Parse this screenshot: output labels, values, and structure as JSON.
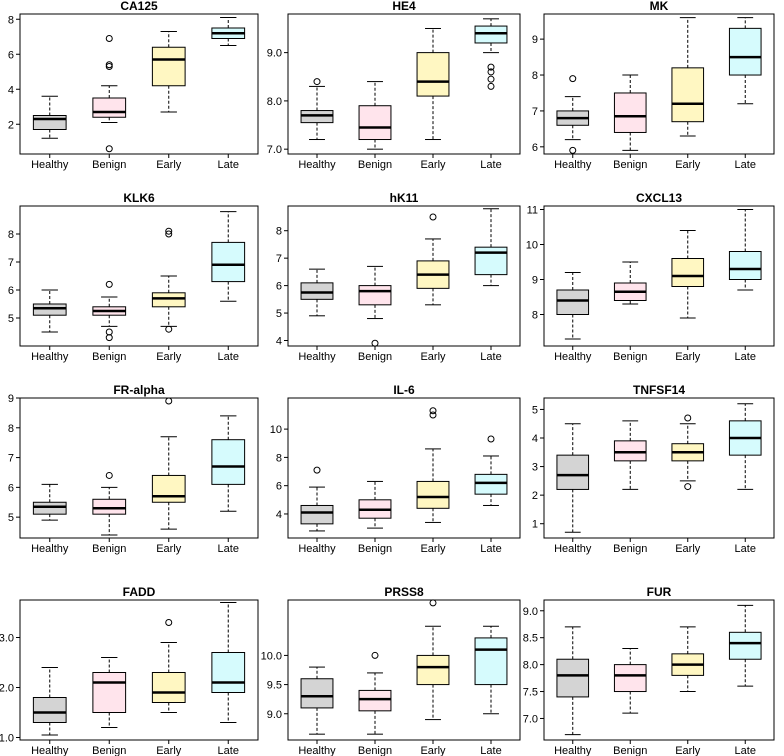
{
  "colors": {
    "Healthy": "#d4d4d4",
    "Benign": "#ffe4ec",
    "Early": "#fff7c2",
    "Late": "#d6fbfd",
    "stroke": "#000000"
  },
  "chart_data": [
    {
      "type": "boxplot",
      "title": "CA125",
      "categories": [
        "Healthy",
        "Benign",
        "Early",
        "Late"
      ],
      "ylim": [
        0.3,
        8.3
      ],
      "yticks": [
        "2",
        "4",
        "6",
        "8"
      ],
      "boxes": [
        {
          "whisker_low": 1.2,
          "q1": 1.7,
          "median": 2.3,
          "q3": 2.5,
          "whisker_high": 3.6,
          "outliers": []
        },
        {
          "whisker_low": 2.1,
          "q1": 2.4,
          "median": 2.7,
          "q3": 3.5,
          "whisker_high": 4.2,
          "outliers": [
            0.6,
            5.3,
            5.4,
            6.9
          ]
        },
        {
          "whisker_low": 2.7,
          "q1": 4.2,
          "median": 5.7,
          "q3": 6.4,
          "whisker_high": 7.3,
          "outliers": []
        },
        {
          "whisker_low": 6.5,
          "q1": 6.9,
          "median": 7.2,
          "q3": 7.5,
          "whisker_high": 8.1,
          "outliers": []
        }
      ]
    },
    {
      "type": "boxplot",
      "title": "HE4",
      "categories": [
        "Healthy",
        "Benign",
        "Early",
        "Late"
      ],
      "ylim": [
        6.9,
        9.8
      ],
      "yticks": [
        "7.0",
        "8.0",
        "9.0"
      ],
      "boxes": [
        {
          "whisker_low": 7.2,
          "q1": 7.55,
          "median": 7.7,
          "q3": 7.8,
          "whisker_high": 8.3,
          "outliers": [
            8.4
          ]
        },
        {
          "whisker_low": 7.0,
          "q1": 7.2,
          "median": 7.45,
          "q3": 7.9,
          "whisker_high": 8.4,
          "outliers": []
        },
        {
          "whisker_low": 7.2,
          "q1": 8.1,
          "median": 8.4,
          "q3": 9.0,
          "whisker_high": 9.5,
          "outliers": []
        },
        {
          "whisker_low": 9.0,
          "q1": 9.2,
          "median": 9.4,
          "q3": 9.55,
          "whisker_high": 9.7,
          "outliers": [
            8.3,
            8.45,
            8.6,
            8.7
          ]
        }
      ]
    },
    {
      "type": "boxplot",
      "title": "MK",
      "categories": [
        "Healthy",
        "Benign",
        "Early",
        "Late"
      ],
      "ylim": [
        5.8,
        9.7
      ],
      "yticks": [
        "6",
        "7",
        "8",
        "9"
      ],
      "boxes": [
        {
          "whisker_low": 6.2,
          "q1": 6.6,
          "median": 6.8,
          "q3": 7.0,
          "whisker_high": 7.4,
          "outliers": [
            5.9,
            7.9
          ]
        },
        {
          "whisker_low": 5.9,
          "q1": 6.4,
          "median": 6.85,
          "q3": 7.5,
          "whisker_high": 8.0,
          "outliers": []
        },
        {
          "whisker_low": 6.3,
          "q1": 6.7,
          "median": 7.2,
          "q3": 8.2,
          "whisker_high": 9.6,
          "outliers": []
        },
        {
          "whisker_low": 7.2,
          "q1": 8.0,
          "median": 8.5,
          "q3": 9.3,
          "whisker_high": 9.6,
          "outliers": []
        }
      ]
    },
    {
      "type": "boxplot",
      "title": "KLK6",
      "categories": [
        "Healthy",
        "Benign",
        "Early",
        "Late"
      ],
      "ylim": [
        4.0,
        9.0
      ],
      "yticks": [
        "5",
        "6",
        "7",
        "8"
      ],
      "boxes": [
        {
          "whisker_low": 4.5,
          "q1": 5.1,
          "median": 5.35,
          "q3": 5.5,
          "whisker_high": 6.0,
          "outliers": []
        },
        {
          "whisker_low": 4.7,
          "q1": 5.1,
          "median": 5.25,
          "q3": 5.4,
          "whisker_high": 5.75,
          "outliers": [
            4.3,
            4.5,
            6.2
          ]
        },
        {
          "whisker_low": 4.7,
          "q1": 5.4,
          "median": 5.7,
          "q3": 5.9,
          "whisker_high": 6.5,
          "outliers": [
            4.6,
            8.0,
            8.1
          ]
        },
        {
          "whisker_low": 5.6,
          "q1": 6.3,
          "median": 6.9,
          "q3": 7.7,
          "whisker_high": 8.8,
          "outliers": []
        }
      ]
    },
    {
      "type": "boxplot",
      "title": "hK11",
      "categories": [
        "Healthy",
        "Benign",
        "Early",
        "Late"
      ],
      "ylim": [
        3.8,
        8.9
      ],
      "yticks": [
        "4",
        "5",
        "6",
        "7",
        "8"
      ],
      "boxes": [
        {
          "whisker_low": 4.9,
          "q1": 5.5,
          "median": 5.75,
          "q3": 6.1,
          "whisker_high": 6.6,
          "outliers": []
        },
        {
          "whisker_low": 4.8,
          "q1": 5.3,
          "median": 5.8,
          "q3": 6.0,
          "whisker_high": 6.7,
          "outliers": [
            3.9
          ]
        },
        {
          "whisker_low": 5.3,
          "q1": 5.9,
          "median": 6.4,
          "q3": 6.9,
          "whisker_high": 7.7,
          "outliers": [
            8.5
          ]
        },
        {
          "whisker_low": 6.0,
          "q1": 6.4,
          "median": 7.2,
          "q3": 7.4,
          "whisker_high": 8.8,
          "outliers": []
        }
      ]
    },
    {
      "type": "boxplot",
      "title": "CXCL13",
      "categories": [
        "Healthy",
        "Benign",
        "Early",
        "Late"
      ],
      "ylim": [
        7.1,
        11.1
      ],
      "yticks": [
        "8",
        "9",
        "10",
        "11"
      ],
      "boxes": [
        {
          "whisker_low": 7.3,
          "q1": 8.0,
          "median": 8.4,
          "q3": 8.7,
          "whisker_high": 9.2,
          "outliers": []
        },
        {
          "whisker_low": 8.3,
          "q1": 8.4,
          "median": 8.65,
          "q3": 8.9,
          "whisker_high": 9.5,
          "outliers": []
        },
        {
          "whisker_low": 7.9,
          "q1": 8.8,
          "median": 9.1,
          "q3": 9.6,
          "whisker_high": 10.4,
          "outliers": []
        },
        {
          "whisker_low": 8.7,
          "q1": 9.0,
          "median": 9.3,
          "q3": 9.8,
          "whisker_high": 11.0,
          "outliers": []
        }
      ]
    },
    {
      "type": "boxplot",
      "title": "FR-alpha",
      "categories": [
        "Healthy",
        "Benign",
        "Early",
        "Late"
      ],
      "ylim": [
        4.3,
        9.0
      ],
      "yticks": [
        "5",
        "6",
        "7",
        "8",
        "9"
      ],
      "boxes": [
        {
          "whisker_low": 4.9,
          "q1": 5.1,
          "median": 5.35,
          "q3": 5.5,
          "whisker_high": 6.1,
          "outliers": []
        },
        {
          "whisker_low": 4.4,
          "q1": 5.1,
          "median": 5.3,
          "q3": 5.6,
          "whisker_high": 6.0,
          "outliers": [
            6.4
          ]
        },
        {
          "whisker_low": 4.6,
          "q1": 5.5,
          "median": 5.7,
          "q3": 6.4,
          "whisker_high": 7.7,
          "outliers": [
            8.9
          ]
        },
        {
          "whisker_low": 5.2,
          "q1": 6.1,
          "median": 6.7,
          "q3": 7.6,
          "whisker_high": 8.4,
          "outliers": []
        }
      ]
    },
    {
      "type": "boxplot",
      "title": "IL-6",
      "categories": [
        "Healthy",
        "Benign",
        "Early",
        "Late"
      ],
      "ylim": [
        2.3,
        12.2
      ],
      "yticks": [
        "4",
        "6",
        "8",
        "10"
      ],
      "boxes": [
        {
          "whisker_low": 2.8,
          "q1": 3.3,
          "median": 4.1,
          "q3": 4.6,
          "whisker_high": 5.9,
          "outliers": [
            7.1
          ]
        },
        {
          "whisker_low": 3.0,
          "q1": 3.7,
          "median": 4.3,
          "q3": 5.0,
          "whisker_high": 6.3,
          "outliers": []
        },
        {
          "whisker_low": 3.4,
          "q1": 4.4,
          "median": 5.2,
          "q3": 6.3,
          "whisker_high": 8.6,
          "outliers": [
            11.0,
            11.3
          ]
        },
        {
          "whisker_low": 4.6,
          "q1": 5.4,
          "median": 6.2,
          "q3": 6.8,
          "whisker_high": 8.1,
          "outliers": [
            9.3
          ]
        }
      ]
    },
    {
      "type": "boxplot",
      "title": "TNFSF14",
      "categories": [
        "Healthy",
        "Benign",
        "Early",
        "Late"
      ],
      "ylim": [
        0.5,
        5.4
      ],
      "yticks": [
        "1",
        "2",
        "3",
        "4",
        "5"
      ],
      "boxes": [
        {
          "whisker_low": 0.7,
          "q1": 2.2,
          "median": 2.7,
          "q3": 3.4,
          "whisker_high": 4.5,
          "outliers": []
        },
        {
          "whisker_low": 2.2,
          "q1": 3.2,
          "median": 3.5,
          "q3": 3.9,
          "whisker_high": 4.6,
          "outliers": []
        },
        {
          "whisker_low": 2.5,
          "q1": 3.2,
          "median": 3.5,
          "q3": 3.8,
          "whisker_high": 4.5,
          "outliers": [
            2.3,
            4.7
          ]
        },
        {
          "whisker_low": 2.2,
          "q1": 3.4,
          "median": 4.0,
          "q3": 4.6,
          "whisker_high": 5.2,
          "outliers": []
        }
      ]
    },
    {
      "type": "boxplot",
      "title": "FADD",
      "categories": [
        "Healthy",
        "Benign",
        "Early",
        "Late"
      ],
      "ylim": [
        0.95,
        3.75
      ],
      "yticks": [
        "1.0",
        "2.0",
        "3.0"
      ],
      "boxes": [
        {
          "whisker_low": 1.05,
          "q1": 1.3,
          "median": 1.5,
          "q3": 1.8,
          "whisker_high": 2.4,
          "outliers": []
        },
        {
          "whisker_low": 1.2,
          "q1": 1.5,
          "median": 2.1,
          "q3": 2.3,
          "whisker_high": 2.6,
          "outliers": []
        },
        {
          "whisker_low": 1.5,
          "q1": 1.7,
          "median": 1.9,
          "q3": 2.3,
          "whisker_high": 2.9,
          "outliers": [
            3.3
          ]
        },
        {
          "whisker_low": 1.3,
          "q1": 1.9,
          "median": 2.1,
          "q3": 2.7,
          "whisker_high": 3.7,
          "outliers": []
        }
      ]
    },
    {
      "type": "boxplot",
      "title": "PRSS8",
      "categories": [
        "Healthy",
        "Benign",
        "Early",
        "Late"
      ],
      "ylim": [
        8.55,
        10.95
      ],
      "yticks": [
        "9.0",
        "9.5",
        "10.0"
      ],
      "boxes": [
        {
          "whisker_low": 8.65,
          "q1": 9.1,
          "median": 9.3,
          "q3": 9.6,
          "whisker_high": 9.8,
          "outliers": []
        },
        {
          "whisker_low": 8.65,
          "q1": 9.05,
          "median": 9.25,
          "q3": 9.4,
          "whisker_high": 9.7,
          "outliers": [
            10.0
          ]
        },
        {
          "whisker_low": 8.9,
          "q1": 9.5,
          "median": 9.8,
          "q3": 10.0,
          "whisker_high": 10.5,
          "outliers": [
            10.9
          ]
        },
        {
          "whisker_low": 9.0,
          "q1": 9.5,
          "median": 10.1,
          "q3": 10.3,
          "whisker_high": 10.5,
          "outliers": []
        }
      ]
    },
    {
      "type": "boxplot",
      "title": "FUR",
      "categories": [
        "Healthy",
        "Benign",
        "Early",
        "Late"
      ],
      "ylim": [
        6.6,
        9.2
      ],
      "yticks": [
        "7.0",
        "7.5",
        "8.0",
        "8.5",
        "9.0"
      ],
      "boxes": [
        {
          "whisker_low": 6.7,
          "q1": 7.4,
          "median": 7.8,
          "q3": 8.1,
          "whisker_high": 8.7,
          "outliers": []
        },
        {
          "whisker_low": 7.1,
          "q1": 7.5,
          "median": 7.8,
          "q3": 8.0,
          "whisker_high": 8.3,
          "outliers": []
        },
        {
          "whisker_low": 7.5,
          "q1": 7.8,
          "median": 8.0,
          "q3": 8.2,
          "whisker_high": 8.7,
          "outliers": []
        },
        {
          "whisker_low": 7.6,
          "q1": 8.1,
          "median": 8.4,
          "q3": 8.6,
          "whisker_high": 9.1,
          "outliers": []
        }
      ]
    }
  ]
}
